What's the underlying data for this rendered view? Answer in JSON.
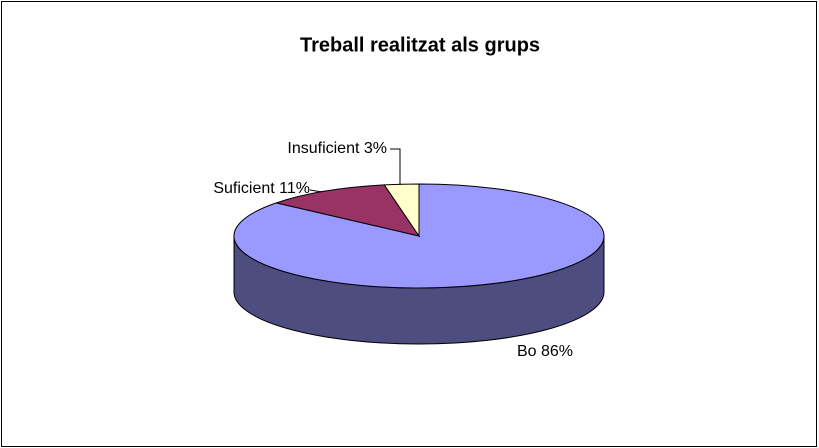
{
  "chart_data": {
    "type": "pie",
    "title": "Treball realitzat als grups",
    "categories": [
      "Bo",
      "Suficient",
      "Insuficient"
    ],
    "values": [
      86,
      11,
      3
    ],
    "value_labels": [
      "86%",
      "11%",
      "3%"
    ],
    "colors": [
      "#9999ff",
      "#993366",
      "#ffffcc"
    ]
  }
}
